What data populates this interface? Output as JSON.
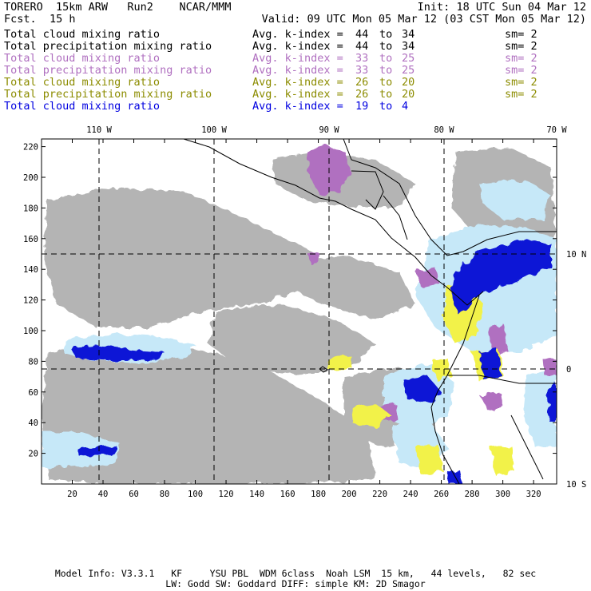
{
  "header": {
    "model_line": "TORERO  15km ARW   Run2    NCAR/MMM",
    "init": "Init: 18 UTC Sun 04 Mar 12",
    "fcst_label": "Fcst.",
    "fcst_value": "15 h",
    "valid": "Valid: 09 UTC Mon 05 Mar 12 (03 CST Mon 05 Mar 12)"
  },
  "fields": [
    {
      "name": "Total cloud mixing ratio",
      "kindex": "Avg. k-index =",
      "from": "44",
      "to_word": "to",
      "to": "34",
      "sm": "sm= 2",
      "color": "#000000"
    },
    {
      "name": "Total precipitation mixing ratio",
      "kindex": "Avg. k-index =",
      "from": "44",
      "to_word": "to",
      "to": "34",
      "sm": "sm= 2",
      "color": "#000000"
    },
    {
      "name": "Total cloud mixing ratio",
      "kindex": "Avg. k-index =",
      "from": "33",
      "to_word": "to",
      "to": "25",
      "sm": "sm= 2",
      "color": "#b070c0"
    },
    {
      "name": "Total precipitation mixing ratio",
      "kindex": "Avg. k-index =",
      "from": "33",
      "to_word": "to",
      "to": "25",
      "sm": "sm= 2",
      "color": "#b070c0"
    },
    {
      "name": "Total cloud mixing ratio",
      "kindex": "Avg. k-index =",
      "from": "26",
      "to_word": "to",
      "to": "20",
      "sm": "sm= 2",
      "color": "#8c8c00"
    },
    {
      "name": "Total precipitation mixing ratio",
      "kindex": "Avg. k-index =",
      "from": "26",
      "to_word": "to",
      "to": "20",
      "sm": "sm= 2",
      "color": "#8c8c00"
    },
    {
      "name": "Total cloud mixing ratio",
      "kindex": "Avg. k-index =",
      "from": "19",
      "to_word": "to",
      "to": "4",
      "sm": "",
      "color": "#0000e0"
    }
  ],
  "map": {
    "top_lon_labels": [
      "110 W",
      "100 W",
      "90 W",
      "80 W",
      "70 W"
    ],
    "right_lat_labels": [
      "10 N",
      "0",
      "10 S"
    ],
    "x_ticks": [
      "20",
      "40",
      "60",
      "80",
      "100",
      "120",
      "140",
      "160",
      "180",
      "200",
      "220",
      "240",
      "260",
      "280",
      "300",
      "320"
    ],
    "y_ticks": [
      "20",
      "40",
      "60",
      "80",
      "100",
      "120",
      "140",
      "160",
      "180",
      "200",
      "220"
    ],
    "colors": {
      "gray": "#b4b4b4",
      "purple": "#b070c0",
      "yellow": "#f2f24a",
      "lightblue": "#c6e8f8",
      "midblue": "#5a8ce8",
      "darkblue": "#0a16d6"
    }
  },
  "footer": {
    "line1": "Model Info: V3.3.1   KF     YSU PBL  WDM 6class  Noah LSM  15 km,   44 levels,   82 sec",
    "line2": "LW: Godd SW: Goddard DIFF: simple KM: 2D Smagor"
  }
}
